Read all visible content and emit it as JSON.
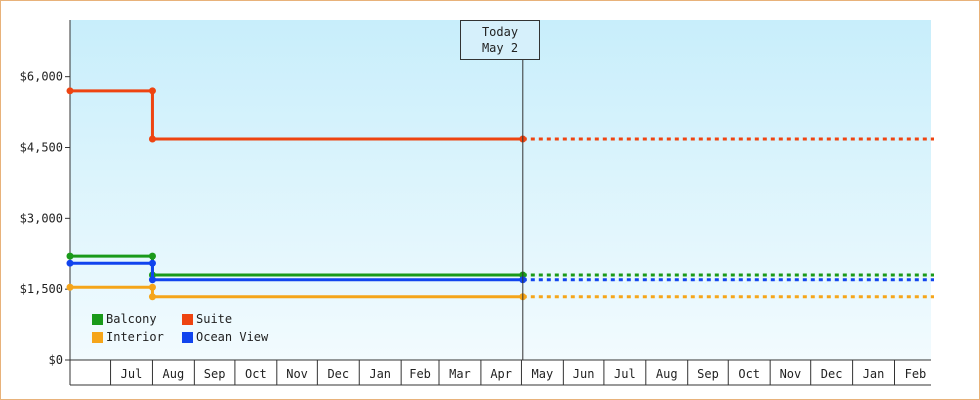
{
  "chart_data": {
    "type": "line",
    "step": true,
    "ylim": [
      0,
      7200
    ],
    "y_ticks": [
      {
        "value": 0,
        "label": "$0"
      },
      {
        "value": 1500,
        "label": "$1,500"
      },
      {
        "value": 3000,
        "label": "$3,000"
      },
      {
        "value": 4500,
        "label": "$4,500"
      },
      {
        "value": 6000,
        "label": "$6,000"
      }
    ],
    "x_range": [
      "2021-06-01",
      "2023-02-28"
    ],
    "month_ticks": [
      {
        "date": "2021-07-01",
        "label": "Jul"
      },
      {
        "date": "2021-08-01",
        "label": "Aug"
      },
      {
        "date": "2021-09-01",
        "label": "Sep"
      },
      {
        "date": "2021-10-01",
        "label": "Oct"
      },
      {
        "date": "2021-11-01",
        "label": "Nov"
      },
      {
        "date": "2021-12-01",
        "label": "Dec"
      },
      {
        "date": "2022-01-01",
        "label": "Jan"
      },
      {
        "date": "2022-02-01",
        "label": "Feb"
      },
      {
        "date": "2022-03-01",
        "label": "Mar"
      },
      {
        "date": "2022-04-01",
        "label": "Apr"
      },
      {
        "date": "2022-05-01",
        "label": "May"
      },
      {
        "date": "2022-06-01",
        "label": "Jun"
      },
      {
        "date": "2022-07-01",
        "label": "Jul"
      },
      {
        "date": "2022-08-01",
        "label": "Aug"
      },
      {
        "date": "2022-09-01",
        "label": "Sep"
      },
      {
        "date": "2022-10-01",
        "label": "Oct"
      },
      {
        "date": "2022-11-01",
        "label": "Nov"
      },
      {
        "date": "2022-12-01",
        "label": "Dec"
      },
      {
        "date": "2023-01-01",
        "label": "Jan"
      },
      {
        "date": "2023-02-01",
        "label": "Feb"
      }
    ],
    "today": {
      "date": "2022-05-02",
      "label_line1": "Today",
      "label_line2": "May 2"
    },
    "projection_end": "2023-02-28",
    "series": [
      {
        "name": "Balcony",
        "color": "#1a9a1a",
        "points": [
          {
            "x": "2021-06-10",
            "y": 2200
          },
          {
            "x": "2021-08-01",
            "y": 2200
          },
          {
            "x": "2021-08-01",
            "y": 1800
          },
          {
            "x": "2022-05-02",
            "y": 1800
          }
        ]
      },
      {
        "name": "Suite",
        "color": "#ee4411",
        "points": [
          {
            "x": "2021-06-10",
            "y": 5700
          },
          {
            "x": "2021-08-01",
            "y": 5700
          },
          {
            "x": "2021-08-01",
            "y": 4680
          },
          {
            "x": "2022-05-02",
            "y": 4680
          }
        ]
      },
      {
        "name": "Interior",
        "color": "#f5a51a",
        "points": [
          {
            "x": "2021-06-10",
            "y": 1540
          },
          {
            "x": "2021-08-01",
            "y": 1540
          },
          {
            "x": "2021-08-01",
            "y": 1340
          },
          {
            "x": "2022-05-02",
            "y": 1340
          }
        ]
      },
      {
        "name": "Ocean View",
        "color": "#1144ee",
        "points": [
          {
            "x": "2021-06-10",
            "y": 2050
          },
          {
            "x": "2021-08-01",
            "y": 2050
          },
          {
            "x": "2021-08-01",
            "y": 1700
          },
          {
            "x": "2022-05-02",
            "y": 1700
          }
        ]
      }
    ],
    "legend_position": "bottom-left",
    "grid": false
  }
}
